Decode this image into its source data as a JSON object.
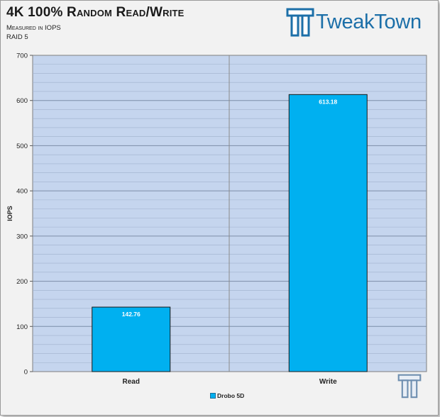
{
  "header": {
    "title": "4K 100% Random Read/Write",
    "subtitle_line1": "Measured in IOPS",
    "subtitle_line2": "RAID 5",
    "brand": "TweakTown"
  },
  "colors": {
    "plot_bg": "#c5d5ee",
    "bar": "#00b0f0",
    "bar_border": "#1a1a1a",
    "grid": "#8a9bb5",
    "brand": "#1c6fa8"
  },
  "chart_data": {
    "type": "bar",
    "title": "4K 100% Random Read/Write",
    "ylabel": "IOPS",
    "xlabel": "",
    "ylim": [
      0,
      700
    ],
    "yticks": [
      0,
      100,
      200,
      300,
      400,
      500,
      600,
      700
    ],
    "categories": [
      "Read",
      "Write"
    ],
    "series": [
      {
        "name": "Drobo 5D",
        "values": [
          142.76,
          613.18
        ],
        "labels": [
          "142.76",
          "613.18"
        ]
      }
    ],
    "grid": true,
    "legend": "bottom"
  }
}
